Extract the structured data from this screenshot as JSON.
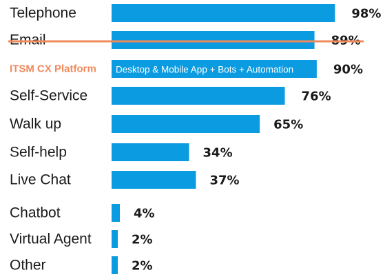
{
  "chart_data": {
    "type": "bar",
    "orientation": "horizontal",
    "categories": [
      "Telephone",
      "Email",
      "ITSM CX Platform",
      "Self-Service",
      "Walk up",
      "Self-help",
      "Live Chat",
      "Chatbot",
      "Virtual Agent",
      "Other"
    ],
    "values": [
      98,
      89,
      90,
      76,
      65,
      34,
      37,
      4,
      2,
      2
    ],
    "value_labels": [
      "98%",
      "89%",
      "90%",
      "76%",
      "65%",
      "34%",
      "37%",
      "4%",
      "2%",
      "2%"
    ],
    "bar_color": "#0A9BE0",
    "highlight": {
      "label": "ITSM CX Platform",
      "label_color": "#F08A5D",
      "bar_text": "Desktop & Mobile App + Bots + Automation"
    },
    "strikethrough": {
      "category": "Email",
      "color": "#F08A5D"
    },
    "xlim": [
      0,
      100
    ]
  }
}
